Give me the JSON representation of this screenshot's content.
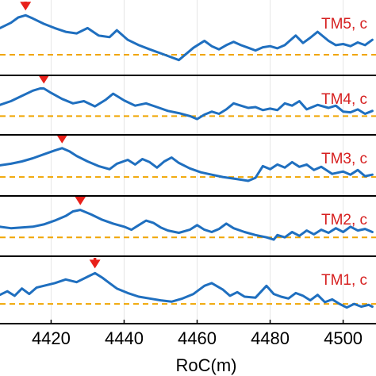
{
  "colors": {
    "curve": "#1f6fbf",
    "threshold": "#f0a500",
    "arrow": "#e8201a",
    "label": "#d62020",
    "frame": "#000000",
    "grid": "#e6e6e6"
  },
  "chart_data": {
    "type": "line",
    "xlabel": "RoC(m)",
    "x_ticks": [
      4420,
      4440,
      4460,
      4480,
      4500
    ],
    "x_tick_labels": [
      "4420",
      "4440",
      "4460",
      "4480",
      "4500"
    ],
    "xlim": [
      4406,
      4509
    ],
    "grid": true,
    "panels": [
      {
        "label": "TM5, c",
        "peak_marker_x": 4413,
        "threshold": 0.12,
        "x": [
          4406,
          4409,
          4411,
          4413,
          4415,
          4418,
          4421,
          4424,
          4427,
          4430,
          4433,
          4436,
          4438,
          4441,
          4444,
          4447,
          4451,
          4455,
          4459,
          4462,
          4464,
          4466,
          4468,
          4470,
          4472,
          4474,
          4476,
          4478,
          4480,
          4482,
          4484,
          4487,
          4489,
          4491,
          4493,
          4496,
          4498,
          4500,
          4502,
          4504,
          4506,
          4508
        ],
        "y": [
          0.62,
          0.72,
          0.82,
          0.86,
          0.8,
          0.7,
          0.62,
          0.55,
          0.52,
          0.62,
          0.48,
          0.45,
          0.58,
          0.4,
          0.3,
          0.22,
          0.12,
          0.02,
          0.25,
          0.38,
          0.28,
          0.22,
          0.3,
          0.36,
          0.3,
          0.25,
          0.2,
          0.26,
          0.28,
          0.24,
          0.3,
          0.48,
          0.34,
          0.44,
          0.55,
          0.38,
          0.3,
          0.32,
          0.28,
          0.35,
          0.3,
          0.4
        ]
      },
      {
        "label": "TM4, c",
        "peak_marker_x": 4418,
        "threshold": 0.12,
        "x": [
          4406,
          4409,
          4412,
          4415,
          4417,
          4418,
          4420,
          4423,
          4426,
          4429,
          4432,
          4435,
          4437,
          4440,
          4443,
          4446,
          4449,
          4452,
          4455,
          4458,
          4460,
          4462,
          4464,
          4466,
          4468,
          4470,
          4472,
          4474,
          4476,
          4478,
          4480,
          4482,
          4484,
          4486,
          4488,
          4490,
          4493,
          4496,
          4498,
          4500,
          4502,
          4504,
          4506,
          4508
        ],
        "y": [
          0.42,
          0.52,
          0.66,
          0.8,
          0.86,
          0.86,
          0.74,
          0.58,
          0.46,
          0.52,
          0.38,
          0.56,
          0.72,
          0.54,
          0.4,
          0.46,
          0.36,
          0.26,
          0.2,
          0.12,
          0.04,
          0.16,
          0.24,
          0.18,
          0.3,
          0.46,
          0.4,
          0.34,
          0.36,
          0.28,
          0.32,
          0.28,
          0.46,
          0.4,
          0.52,
          0.3,
          0.42,
          0.34,
          0.4,
          0.24,
          0.22,
          0.3,
          0.18,
          0.26
        ]
      },
      {
        "label": "TM3, c",
        "peak_marker_x": 4423,
        "threshold": 0.12,
        "x": [
          4406,
          4409,
          4412,
          4415,
          4418,
          4421,
          4423,
          4425,
          4427,
          4430,
          4433,
          4436,
          4438,
          4441,
          4443,
          4445,
          4447,
          4449,
          4451,
          4453,
          4455,
          4458,
          4461,
          4464,
          4467,
          4470,
          4472,
          4474,
          4476,
          4478,
          4480,
          4482,
          4484,
          4486,
          4488,
          4490,
          4492,
          4494,
          4497,
          4500,
          4502,
          4504,
          4506,
          4508
        ],
        "y": [
          0.42,
          0.46,
          0.52,
          0.6,
          0.7,
          0.8,
          0.86,
          0.78,
          0.66,
          0.52,
          0.4,
          0.32,
          0.46,
          0.56,
          0.44,
          0.58,
          0.5,
          0.36,
          0.52,
          0.62,
          0.48,
          0.34,
          0.24,
          0.18,
          0.12,
          0.08,
          0.05,
          0.02,
          0.1,
          0.4,
          0.32,
          0.44,
          0.36,
          0.5,
          0.38,
          0.44,
          0.3,
          0.38,
          0.2,
          0.26,
          0.18,
          0.3,
          0.14,
          0.18
        ]
      },
      {
        "label": "TM2, c",
        "peak_marker_x": 4428,
        "threshold": 0.12,
        "x": [
          4406,
          4409,
          4412,
          4415,
          4418,
          4421,
          4424,
          4426,
          4428,
          4431,
          4434,
          4437,
          4440,
          4442,
          4444,
          4446,
          4448,
          4450,
          4452,
          4455,
          4458,
          4460,
          4462,
          4464,
          4466,
          4468,
          4470,
          4473,
          4476,
          4479,
          4481,
          4482,
          4484,
          4486,
          4488,
          4490,
          4492,
          4494,
          4496,
          4498,
          4500,
          4502,
          4504,
          4506,
          4508
        ],
        "y": [
          0.4,
          0.36,
          0.38,
          0.4,
          0.46,
          0.56,
          0.68,
          0.8,
          0.84,
          0.72,
          0.58,
          0.48,
          0.4,
          0.32,
          0.44,
          0.56,
          0.5,
          0.38,
          0.3,
          0.24,
          0.32,
          0.44,
          0.32,
          0.26,
          0.34,
          0.48,
          0.36,
          0.26,
          0.18,
          0.12,
          0.06,
          0.18,
          0.12,
          0.26,
          0.16,
          0.3,
          0.2,
          0.32,
          0.24,
          0.36,
          0.26,
          0.4,
          0.3,
          0.34,
          0.26
        ]
      },
      {
        "label": "TM1, c",
        "peak_marker_x": 4432,
        "threshold": 0.12,
        "x": [
          4406,
          4408,
          4410,
          4412,
          4414,
          4416,
          4418,
          4421,
          4424,
          4427,
          4430,
          4432,
          4434,
          4436,
          4438,
          4441,
          4444,
          4447,
          4450,
          4453,
          4456,
          4459,
          4462,
          4464,
          4467,
          4469,
          4471,
          4473,
          4476,
          4479,
          4481,
          4483,
          4485,
          4487,
          4489,
          4491,
          4493,
          4495,
          4497,
          4499,
          4501,
          4503,
          4505,
          4507,
          4508
        ],
        "y": [
          0.32,
          0.4,
          0.3,
          0.46,
          0.34,
          0.48,
          0.52,
          0.58,
          0.66,
          0.6,
          0.72,
          0.8,
          0.7,
          0.58,
          0.46,
          0.36,
          0.28,
          0.24,
          0.2,
          0.17,
          0.24,
          0.34,
          0.52,
          0.58,
          0.44,
          0.3,
          0.38,
          0.28,
          0.26,
          0.52,
          0.34,
          0.28,
          0.24,
          0.36,
          0.3,
          0.2,
          0.32,
          0.16,
          0.22,
          0.12,
          0.04,
          0.12,
          0.06,
          0.1,
          0.06
        ]
      }
    ]
  }
}
